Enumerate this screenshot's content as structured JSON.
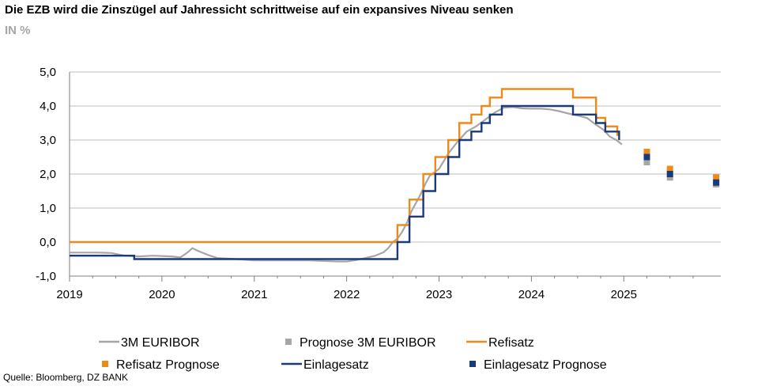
{
  "header": {
    "title": "Die EZB wird die Zinszügel auf Jahressicht schrittweise auf ein expansives Niveau senken",
    "subtitle": "IN %"
  },
  "footer": {
    "source": "Quelle: Bloomberg, DZ BANK"
  },
  "chart_data": {
    "type": "line",
    "title": "Die EZB wird die Zinszügel auf Jahressicht schrittweise auf ein expansives Niveau senken",
    "subtitle": "IN %",
    "xlabel": "",
    "ylabel": "",
    "xlim": [
      2019.0,
      2026.05
    ],
    "ylim": [
      -1.0,
      5.0
    ],
    "x_ticks": [
      2019,
      2020,
      2021,
      2022,
      2023,
      2024,
      2025
    ],
    "x_tick_labels": [
      "2019",
      "2020",
      "2021",
      "2022",
      "2023",
      "2024",
      "2025"
    ],
    "y_ticks": [
      -1,
      0,
      1,
      2,
      3,
      4,
      5
    ],
    "y_tick_labels": [
      "-1,0",
      "0,0",
      "1,0",
      "2,0",
      "3,0",
      "4,0",
      "5,0"
    ],
    "grid": {
      "horizontal": true,
      "vertical": false
    },
    "legend_position": "bottom",
    "series": [
      {
        "name": "3M EURIBOR",
        "kind": "line",
        "color": "#a6a6a6",
        "points": [
          [
            2019.0,
            -0.31
          ],
          [
            2019.3,
            -0.31
          ],
          [
            2019.45,
            -0.32
          ],
          [
            2019.6,
            -0.4
          ],
          [
            2019.75,
            -0.42
          ],
          [
            2019.9,
            -0.4
          ],
          [
            2020.1,
            -0.42
          ],
          [
            2020.2,
            -0.45
          ],
          [
            2020.28,
            -0.3
          ],
          [
            2020.33,
            -0.18
          ],
          [
            2020.4,
            -0.27
          ],
          [
            2020.5,
            -0.38
          ],
          [
            2020.6,
            -0.47
          ],
          [
            2020.8,
            -0.5
          ],
          [
            2021.0,
            -0.54
          ],
          [
            2021.3,
            -0.54
          ],
          [
            2021.6,
            -0.54
          ],
          [
            2021.9,
            -0.57
          ],
          [
            2022.0,
            -0.57
          ],
          [
            2022.1,
            -0.53
          ],
          [
            2022.2,
            -0.47
          ],
          [
            2022.3,
            -0.41
          ],
          [
            2022.4,
            -0.3
          ],
          [
            2022.45,
            -0.18
          ],
          [
            2022.5,
            0.0
          ],
          [
            2022.55,
            0.1
          ],
          [
            2022.6,
            0.3
          ],
          [
            2022.65,
            0.55
          ],
          [
            2022.7,
            0.9
          ],
          [
            2022.75,
            1.15
          ],
          [
            2022.8,
            1.4
          ],
          [
            2022.85,
            1.7
          ],
          [
            2022.9,
            1.95
          ],
          [
            2022.95,
            2.05
          ],
          [
            2023.0,
            2.15
          ],
          [
            2023.1,
            2.6
          ],
          [
            2023.2,
            2.95
          ],
          [
            2023.3,
            3.25
          ],
          [
            2023.4,
            3.4
          ],
          [
            2023.5,
            3.6
          ],
          [
            2023.6,
            3.8
          ],
          [
            2023.7,
            3.95
          ],
          [
            2023.8,
            3.97
          ],
          [
            2023.9,
            3.93
          ],
          [
            2024.0,
            3.92
          ],
          [
            2024.1,
            3.92
          ],
          [
            2024.2,
            3.9
          ],
          [
            2024.3,
            3.85
          ],
          [
            2024.4,
            3.78
          ],
          [
            2024.5,
            3.72
          ],
          [
            2024.6,
            3.65
          ],
          [
            2024.7,
            3.45
          ],
          [
            2024.78,
            3.3
          ],
          [
            2024.85,
            3.1
          ],
          [
            2024.92,
            3.0
          ],
          [
            2024.98,
            2.87
          ]
        ]
      },
      {
        "name": "Prognose 3M EURIBOR",
        "kind": "marker",
        "color": "#a6a6a6",
        "points": [
          [
            2025.25,
            2.35
          ],
          [
            2025.5,
            1.9
          ],
          [
            2026.0,
            1.7
          ]
        ]
      },
      {
        "name": "Refisatz",
        "kind": "step",
        "color": "#ee8a1a",
        "points": [
          [
            2019.0,
            0.0
          ],
          [
            2022.55,
            0.0
          ],
          [
            2022.55,
            0.5
          ],
          [
            2022.68,
            0.5
          ],
          [
            2022.68,
            1.25
          ],
          [
            2022.83,
            1.25
          ],
          [
            2022.83,
            2.0
          ],
          [
            2022.96,
            2.0
          ],
          [
            2022.96,
            2.5
          ],
          [
            2023.1,
            2.5
          ],
          [
            2023.1,
            3.0
          ],
          [
            2023.22,
            3.0
          ],
          [
            2023.22,
            3.5
          ],
          [
            2023.35,
            3.5
          ],
          [
            2023.35,
            3.75
          ],
          [
            2023.46,
            3.75
          ],
          [
            2023.46,
            4.0
          ],
          [
            2023.55,
            4.0
          ],
          [
            2023.55,
            4.25
          ],
          [
            2023.68,
            4.25
          ],
          [
            2023.68,
            4.5
          ],
          [
            2024.45,
            4.5
          ],
          [
            2024.45,
            4.25
          ],
          [
            2024.7,
            4.25
          ],
          [
            2024.7,
            3.65
          ],
          [
            2024.8,
            3.65
          ],
          [
            2024.8,
            3.4
          ],
          [
            2024.93,
            3.4
          ],
          [
            2024.93,
            3.15
          ],
          [
            2024.95,
            3.15
          ]
        ]
      },
      {
        "name": "Refisatz Prognose",
        "kind": "marker",
        "color": "#ee8a1a",
        "points": [
          [
            2025.25,
            2.65
          ],
          [
            2025.5,
            2.15
          ],
          [
            2026.0,
            1.9
          ]
        ]
      },
      {
        "name": "Einlagesatz",
        "kind": "step",
        "color": "#1a3a7a",
        "points": [
          [
            2019.0,
            -0.4
          ],
          [
            2019.7,
            -0.4
          ],
          [
            2019.7,
            -0.5
          ],
          [
            2022.55,
            -0.5
          ],
          [
            2022.55,
            0.0
          ],
          [
            2022.68,
            0.0
          ],
          [
            2022.68,
            0.75
          ],
          [
            2022.83,
            0.75
          ],
          [
            2022.83,
            1.5
          ],
          [
            2022.96,
            1.5
          ],
          [
            2022.96,
            2.0
          ],
          [
            2023.1,
            2.0
          ],
          [
            2023.1,
            2.5
          ],
          [
            2023.22,
            2.5
          ],
          [
            2023.22,
            3.0
          ],
          [
            2023.35,
            3.0
          ],
          [
            2023.35,
            3.25
          ],
          [
            2023.46,
            3.25
          ],
          [
            2023.46,
            3.5
          ],
          [
            2023.55,
            3.5
          ],
          [
            2023.55,
            3.75
          ],
          [
            2023.68,
            3.75
          ],
          [
            2023.68,
            4.0
          ],
          [
            2024.45,
            4.0
          ],
          [
            2024.45,
            3.75
          ],
          [
            2024.7,
            3.75
          ],
          [
            2024.7,
            3.5
          ],
          [
            2024.8,
            3.5
          ],
          [
            2024.8,
            3.25
          ],
          [
            2024.95,
            3.25
          ],
          [
            2024.95,
            3.0
          ]
        ]
      },
      {
        "name": "Einlagesatz Prognose",
        "kind": "marker",
        "color": "#1a3a7a",
        "points": [
          [
            2025.25,
            2.5
          ],
          [
            2025.5,
            2.0
          ],
          [
            2026.0,
            1.75
          ]
        ]
      }
    ]
  }
}
